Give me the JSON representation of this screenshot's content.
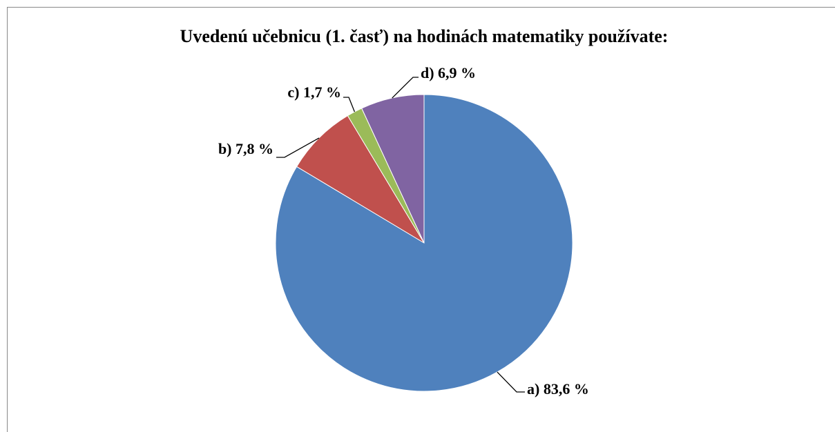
{
  "chart_data": {
    "type": "pie",
    "title": "Uvedenú učebnicu (1. časť) na hodinách matematiky používate:",
    "values": [
      83.6,
      7.8,
      1.7,
      6.9
    ],
    "value_labels": [
      "a) 83,6 %",
      "b) 7,8 %",
      "c) 1,7 %",
      "d) 6,9 %"
    ],
    "colors": [
      "#4f81bd",
      "#c0504d",
      "#9bbb59",
      "#8064a2"
    ]
  }
}
